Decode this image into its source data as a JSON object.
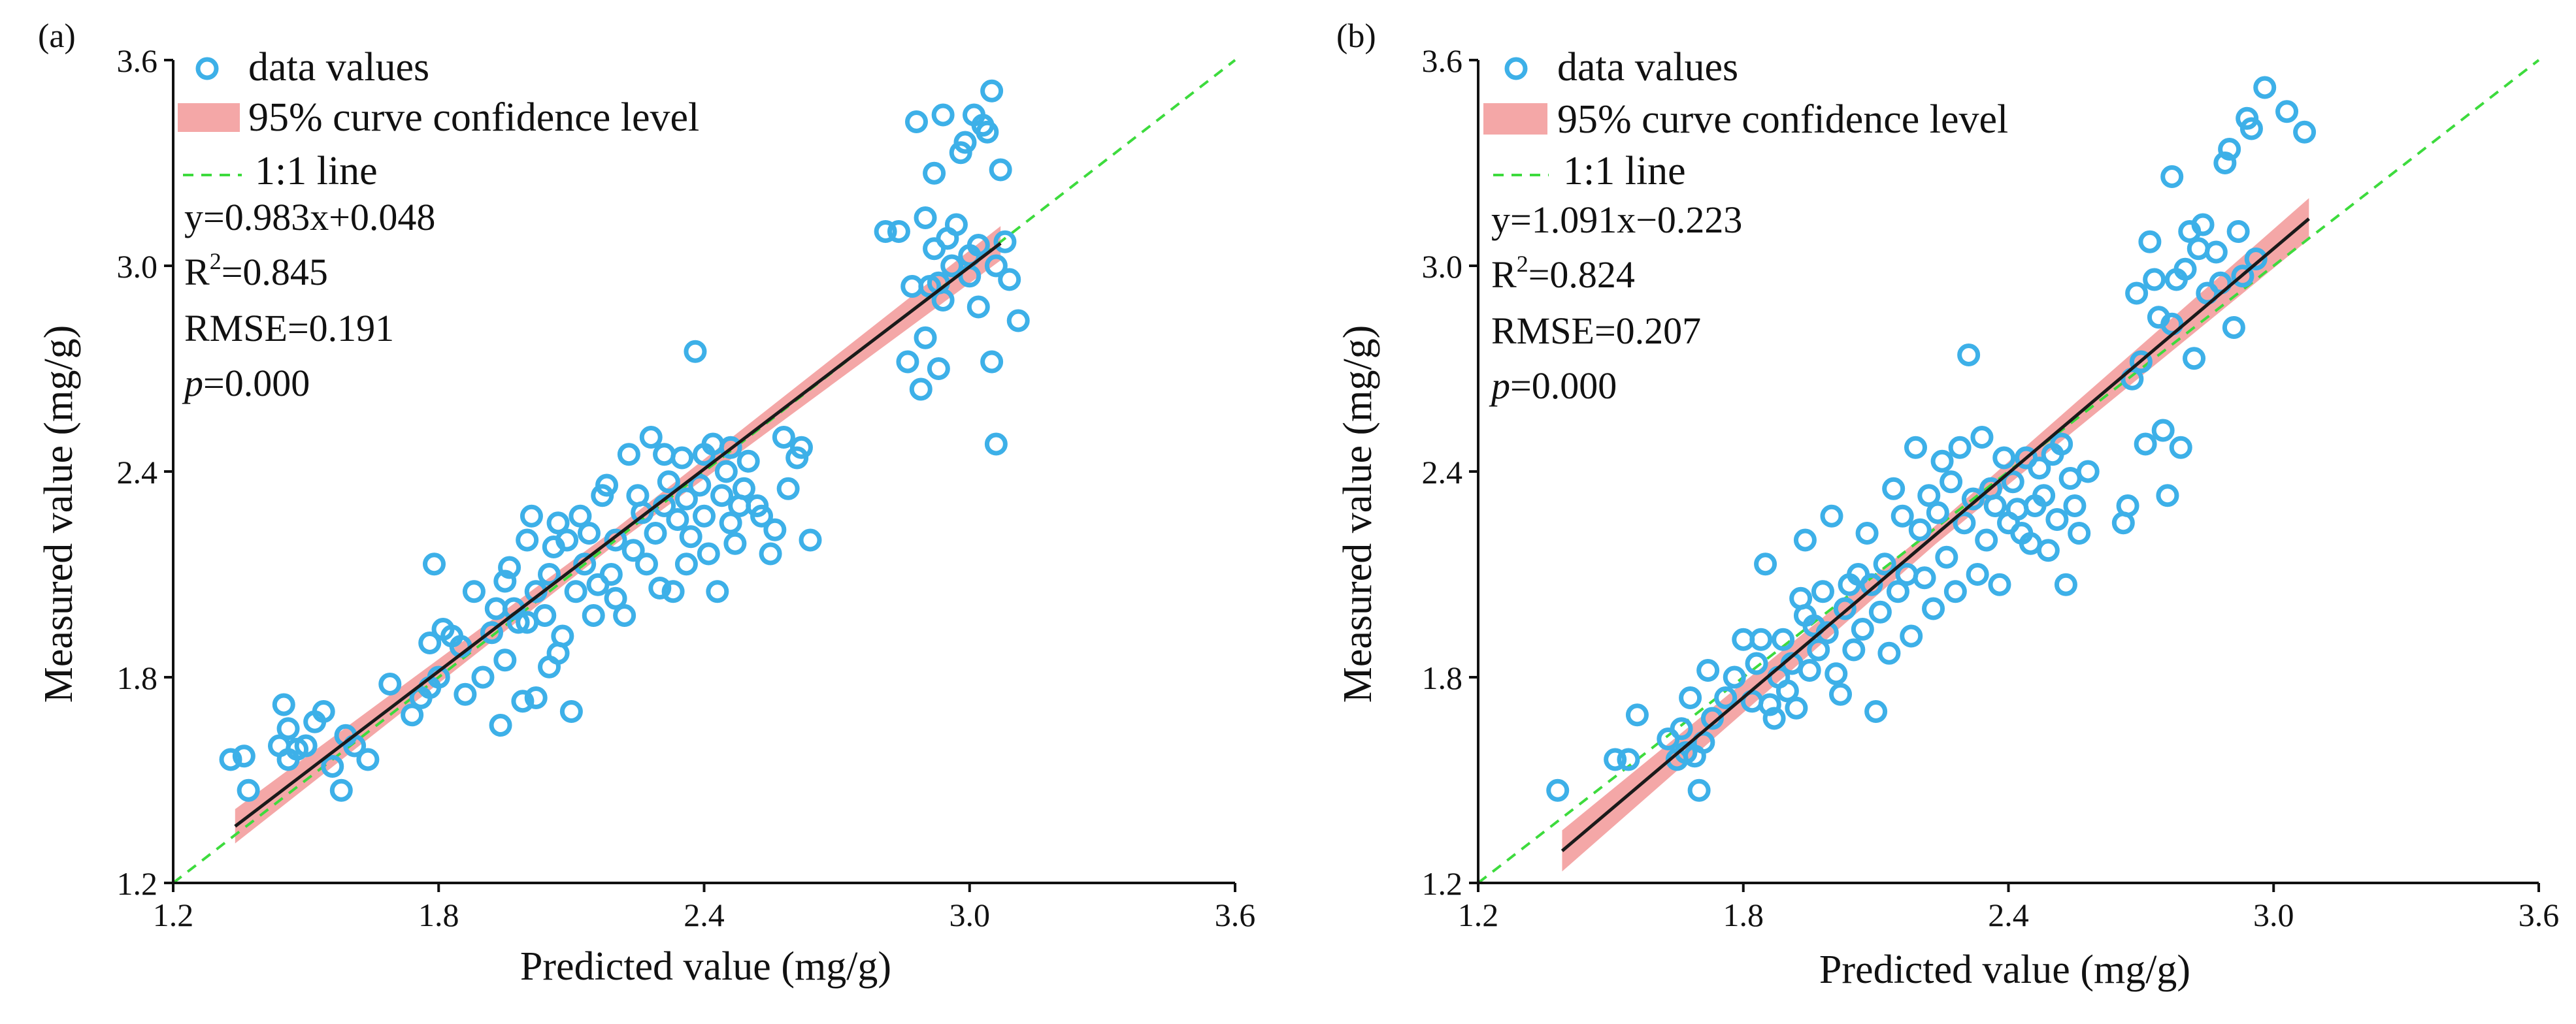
{
  "colors": {
    "points": "#3DB0E8",
    "band": "#F4A7A7",
    "fit": "#1A1A1A",
    "diagonal": "#3DDB3D"
  },
  "chart_data": [
    {
      "type": "scatter",
      "panel_label": "(a)",
      "xlabel": "Predicted value (mg/g)",
      "ylabel": "Measured value (mg/g)",
      "xlim": [
        1.2,
        3.6
      ],
      "ylim": [
        1.2,
        3.6
      ],
      "xticks": [
        "1.2",
        "1.8",
        "2.4",
        "3.0",
        "3.6"
      ],
      "yticks": [
        "1.2",
        "1.8",
        "2.4",
        "3.0",
        "3.6"
      ],
      "legend": {
        "points": "data values",
        "band": "95% curve confidence level",
        "line": "1:1 line"
      },
      "stats": {
        "equation": "y=0.983x+0.048",
        "r2_prefix": "R",
        "r2_sup": "2",
        "r2_value": "=0.845",
        "rmse": "RMSE=0.191",
        "p_label": "p",
        "p_value": "=0.000"
      },
      "fit": {
        "slope": 0.983,
        "intercept": 0.048,
        "x_start": 1.34,
        "x_end": 3.07,
        "band_halfwidth": 0.05
      },
      "points": [
        [
          1.33,
          1.56
        ],
        [
          1.36,
          1.57
        ],
        [
          1.37,
          1.47
        ],
        [
          1.44,
          1.6
        ],
        [
          1.45,
          1.72
        ],
        [
          1.46,
          1.65
        ],
        [
          1.46,
          1.56
        ],
        [
          1.48,
          1.59
        ],
        [
          1.5,
          1.6
        ],
        [
          1.52,
          1.67
        ],
        [
          1.54,
          1.7
        ],
        [
          1.56,
          1.54
        ],
        [
          1.58,
          1.47
        ],
        [
          1.59,
          1.63
        ],
        [
          1.61,
          1.6
        ],
        [
          1.64,
          1.56
        ],
        [
          1.69,
          1.78
        ],
        [
          1.74,
          1.69
        ],
        [
          1.76,
          1.74
        ],
        [
          1.78,
          1.77
        ],
        [
          1.78,
          1.9
        ],
        [
          1.79,
          2.13
        ],
        [
          1.8,
          1.8
        ],
        [
          1.81,
          1.94
        ],
        [
          1.83,
          1.92
        ],
        [
          1.85,
          1.89
        ],
        [
          1.86,
          1.75
        ],
        [
          1.88,
          2.05
        ],
        [
          1.9,
          1.8
        ],
        [
          1.92,
          1.93
        ],
        [
          1.93,
          2.0
        ],
        [
          1.94,
          1.66
        ],
        [
          1.95,
          1.85
        ],
        [
          1.95,
          2.08
        ],
        [
          1.96,
          2.12
        ],
        [
          1.97,
          2.0
        ],
        [
          1.98,
          1.96
        ],
        [
          1.99,
          1.73
        ],
        [
          2.0,
          2.2
        ],
        [
          2.0,
          1.96
        ],
        [
          2.01,
          2.27
        ],
        [
          2.02,
          1.74
        ],
        [
          2.02,
          2.05
        ],
        [
          2.04,
          1.98
        ],
        [
          2.05,
          1.83
        ],
        [
          2.05,
          2.1
        ],
        [
          2.06,
          2.18
        ],
        [
          2.07,
          1.87
        ],
        [
          2.07,
          2.25
        ],
        [
          2.08,
          1.92
        ],
        [
          2.09,
          2.2
        ],
        [
          2.1,
          1.7
        ],
        [
          2.11,
          2.05
        ],
        [
          2.12,
          2.27
        ],
        [
          2.13,
          2.13
        ],
        [
          2.14,
          2.22
        ],
        [
          2.15,
          1.98
        ],
        [
          2.16,
          2.07
        ],
        [
          2.17,
          2.33
        ],
        [
          2.18,
          2.36
        ],
        [
          2.19,
          2.1
        ],
        [
          2.2,
          2.2
        ],
        [
          2.2,
          2.03
        ],
        [
          2.22,
          1.98
        ],
        [
          2.23,
          2.45
        ],
        [
          2.24,
          2.17
        ],
        [
          2.25,
          2.33
        ],
        [
          2.26,
          2.28
        ],
        [
          2.27,
          2.13
        ],
        [
          2.28,
          2.5
        ],
        [
          2.29,
          2.22
        ],
        [
          2.3,
          2.06
        ],
        [
          2.31,
          2.3
        ],
        [
          2.31,
          2.45
        ],
        [
          2.32,
          2.37
        ],
        [
          2.33,
          2.05
        ],
        [
          2.34,
          2.26
        ],
        [
          2.35,
          2.44
        ],
        [
          2.36,
          2.13
        ],
        [
          2.36,
          2.32
        ],
        [
          2.37,
          2.21
        ],
        [
          2.38,
          2.75
        ],
        [
          2.39,
          2.36
        ],
        [
          2.4,
          2.45
        ],
        [
          2.4,
          2.27
        ],
        [
          2.41,
          2.16
        ],
        [
          2.42,
          2.48
        ],
        [
          2.43,
          2.05
        ],
        [
          2.44,
          2.33
        ],
        [
          2.45,
          2.4
        ],
        [
          2.46,
          2.25
        ],
        [
          2.46,
          2.47
        ],
        [
          2.47,
          2.19
        ],
        [
          2.48,
          2.3
        ],
        [
          2.49,
          2.35
        ],
        [
          2.5,
          2.43
        ],
        [
          2.52,
          2.3
        ],
        [
          2.53,
          2.27
        ],
        [
          2.55,
          2.16
        ],
        [
          2.56,
          2.23
        ],
        [
          2.58,
          2.5
        ],
        [
          2.59,
          2.35
        ],
        [
          2.61,
          2.44
        ],
        [
          2.62,
          2.47
        ],
        [
          2.64,
          2.2
        ],
        [
          2.81,
          3.1
        ],
        [
          2.84,
          3.1
        ],
        [
          2.86,
          2.72
        ],
        [
          2.87,
          2.94
        ],
        [
          2.88,
          3.42
        ],
        [
          2.89,
          2.64
        ],
        [
          2.9,
          2.79
        ],
        [
          2.9,
          3.14
        ],
        [
          2.91,
          2.94
        ],
        [
          2.92,
          3.27
        ],
        [
          2.92,
          3.05
        ],
        [
          2.93,
          2.95
        ],
        [
          2.93,
          2.7
        ],
        [
          2.94,
          3.44
        ],
        [
          2.94,
          2.9
        ],
        [
          2.95,
          3.08
        ],
        [
          2.96,
          3.0
        ],
        [
          2.97,
          3.12
        ],
        [
          2.98,
          3.33
        ],
        [
          2.99,
          3.36
        ],
        [
          3.0,
          2.97
        ],
        [
          3.0,
          3.03
        ],
        [
          3.01,
          3.44
        ],
        [
          3.02,
          2.88
        ],
        [
          3.02,
          3.06
        ],
        [
          3.03,
          3.41
        ],
        [
          3.04,
          3.39
        ],
        [
          3.05,
          3.51
        ],
        [
          3.05,
          2.72
        ],
        [
          3.06,
          3.0
        ],
        [
          3.06,
          2.48
        ],
        [
          3.07,
          3.28
        ],
        [
          3.08,
          3.07
        ],
        [
          3.09,
          2.96
        ],
        [
          3.11,
          2.84
        ]
      ]
    },
    {
      "type": "scatter",
      "panel_label": "(b)",
      "xlabel": "Predicted value (mg/g)",
      "ylabel": "Measured value (mg/g)",
      "xlim": [
        1.2,
        3.6
      ],
      "ylim": [
        1.2,
        3.6
      ],
      "xticks": [
        "1.2",
        "1.8",
        "2.4",
        "3.0",
        "3.6"
      ],
      "yticks": [
        "1.2",
        "1.8",
        "2.4",
        "3.0",
        "3.6"
      ],
      "legend": {
        "points": "data values",
        "band": "95% curve confidence level",
        "line": "1:1 line"
      },
      "stats": {
        "equation": "y=1.091x−0.223",
        "r2_prefix": "R",
        "r2_sup": "2",
        "r2_value": "=0.824",
        "rmse": "RMSE=0.207",
        "p_label": "p",
        "p_value": "=0.000"
      },
      "fit": {
        "slope": 1.091,
        "intercept": -0.223,
        "x_start": 1.39,
        "x_end": 3.08,
        "band_halfwidth": 0.06
      },
      "points": [
        [
          1.38,
          1.47
        ],
        [
          1.51,
          1.56
        ],
        [
          1.54,
          1.56
        ],
        [
          1.56,
          1.69
        ],
        [
          1.63,
          1.62
        ],
        [
          1.65,
          1.56
        ],
        [
          1.66,
          1.65
        ],
        [
          1.67,
          1.58
        ],
        [
          1.68,
          1.74
        ],
        [
          1.69,
          1.57
        ],
        [
          1.7,
          1.47
        ],
        [
          1.71,
          1.61
        ],
        [
          1.72,
          1.82
        ],
        [
          1.73,
          1.68
        ],
        [
          1.76,
          1.74
        ],
        [
          1.78,
          1.8
        ],
        [
          1.8,
          1.91
        ],
        [
          1.82,
          1.73
        ],
        [
          1.83,
          1.84
        ],
        [
          1.84,
          1.91
        ],
        [
          1.85,
          2.13
        ],
        [
          1.86,
          1.72
        ],
        [
          1.87,
          1.68
        ],
        [
          1.88,
          1.8
        ],
        [
          1.89,
          1.91
        ],
        [
          1.9,
          1.76
        ],
        [
          1.91,
          1.84
        ],
        [
          1.92,
          1.71
        ],
        [
          1.93,
          2.03
        ],
        [
          1.94,
          1.98
        ],
        [
          1.94,
          2.2
        ],
        [
          1.95,
          1.82
        ],
        [
          1.96,
          1.95
        ],
        [
          1.97,
          1.88
        ],
        [
          1.98,
          2.05
        ],
        [
          1.99,
          1.93
        ],
        [
          2.0,
          2.27
        ],
        [
          2.01,
          1.81
        ],
        [
          2.02,
          1.75
        ],
        [
          2.03,
          2.0
        ],
        [
          2.04,
          2.07
        ],
        [
          2.05,
          1.88
        ],
        [
          2.06,
          2.1
        ],
        [
          2.07,
          1.94
        ],
        [
          2.08,
          2.22
        ],
        [
          2.09,
          2.07
        ],
        [
          2.1,
          1.7
        ],
        [
          2.11,
          1.99
        ],
        [
          2.12,
          2.13
        ],
        [
          2.13,
          1.87
        ],
        [
          2.14,
          2.35
        ],
        [
          2.15,
          2.05
        ],
        [
          2.16,
          2.27
        ],
        [
          2.17,
          2.1
        ],
        [
          2.18,
          1.92
        ],
        [
          2.19,
          2.47
        ],
        [
          2.2,
          2.23
        ],
        [
          2.21,
          2.09
        ],
        [
          2.22,
          2.33
        ],
        [
          2.23,
          2.0
        ],
        [
          2.24,
          2.28
        ],
        [
          2.25,
          2.43
        ],
        [
          2.26,
          2.15
        ],
        [
          2.27,
          2.37
        ],
        [
          2.28,
          2.05
        ],
        [
          2.29,
          2.47
        ],
        [
          2.3,
          2.25
        ],
        [
          2.31,
          2.74
        ],
        [
          2.32,
          2.32
        ],
        [
          2.33,
          2.1
        ],
        [
          2.34,
          2.5
        ],
        [
          2.35,
          2.2
        ],
        [
          2.36,
          2.35
        ],
        [
          2.37,
          2.3
        ],
        [
          2.38,
          2.07
        ],
        [
          2.39,
          2.44
        ],
        [
          2.4,
          2.25
        ],
        [
          2.41,
          2.37
        ],
        [
          2.42,
          2.29
        ],
        [
          2.43,
          2.22
        ],
        [
          2.44,
          2.44
        ],
        [
          2.45,
          2.19
        ],
        [
          2.46,
          2.3
        ],
        [
          2.47,
          2.41
        ],
        [
          2.48,
          2.33
        ],
        [
          2.49,
          2.17
        ],
        [
          2.5,
          2.45
        ],
        [
          2.51,
          2.26
        ],
        [
          2.52,
          2.48
        ],
        [
          2.53,
          2.07
        ],
        [
          2.54,
          2.38
        ],
        [
          2.55,
          2.3
        ],
        [
          2.56,
          2.22
        ],
        [
          2.58,
          2.4
        ],
        [
          2.66,
          2.25
        ],
        [
          2.67,
          2.3
        ],
        [
          2.68,
          2.67
        ],
        [
          2.69,
          2.92
        ],
        [
          2.7,
          2.72
        ],
        [
          2.71,
          2.48
        ],
        [
          2.72,
          3.07
        ],
        [
          2.73,
          2.96
        ],
        [
          2.74,
          2.85
        ],
        [
          2.75,
          2.52
        ],
        [
          2.76,
          2.33
        ],
        [
          2.77,
          2.83
        ],
        [
          2.77,
          3.26
        ],
        [
          2.78,
          2.96
        ],
        [
          2.79,
          2.47
        ],
        [
          2.8,
          2.99
        ],
        [
          2.81,
          3.1
        ],
        [
          2.82,
          2.73
        ],
        [
          2.83,
          3.05
        ],
        [
          2.84,
          3.12
        ],
        [
          2.85,
          2.92
        ],
        [
          2.87,
          3.04
        ],
        [
          2.88,
          2.95
        ],
        [
          2.89,
          3.3
        ],
        [
          2.9,
          3.34
        ],
        [
          2.91,
          2.82
        ],
        [
          2.92,
          3.1
        ],
        [
          2.93,
          2.97
        ],
        [
          2.94,
          3.43
        ],
        [
          2.95,
          3.4
        ],
        [
          2.96,
          3.02
        ],
        [
          2.98,
          3.52
        ],
        [
          3.03,
          3.45
        ],
        [
          3.07,
          3.39
        ]
      ]
    }
  ]
}
